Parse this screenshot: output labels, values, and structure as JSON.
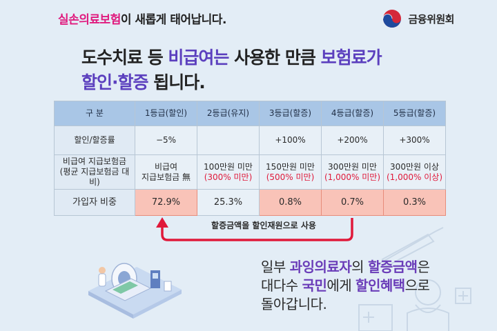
{
  "header": {
    "headline_highlight": "실손의료보험",
    "headline_rest": "이 새롭게 태어납니다.",
    "org_name": "금융위원회",
    "org_logo": "taegeuk-logo"
  },
  "subtitle": {
    "line1_pre": "도수치료 등 ",
    "line1_hl1": "비급여는",
    "line1_mid": " 사용한 만큼 ",
    "line1_hl2": "보험료가",
    "line2_hl": "할인·할증",
    "line2_rest": " 됩니다."
  },
  "table": {
    "headers": [
      "구 분",
      "1등급(할인)",
      "2등급(유지)",
      "3등급(할증)",
      "4등급(할증)",
      "5등급(할증)"
    ],
    "rate_row": {
      "label": "할인/할증률",
      "values": [
        "−5%",
        "",
        "+100%",
        "+200%",
        "+300%"
      ]
    },
    "claim_row": {
      "label_line1": "비급여 지급보험금",
      "label_line2": "(평균 지급보험금 대비)",
      "cells": [
        {
          "line1": "비급여",
          "line2": "지급보험금 無"
        },
        {
          "line1": "100만원 미만",
          "line2": "(300% 미만)"
        },
        {
          "line1": "150만원 미만",
          "line2": "(500% 미만)"
        },
        {
          "line1": "300만원 미만",
          "line2": "(1,000% 미만)"
        },
        {
          "line1": "300만원 이상",
          "line2": "(1,000% 이상)"
        }
      ]
    },
    "share_row": {
      "label": "가입자 비중",
      "values": [
        "72.9%",
        "25.3%",
        "0.8%",
        "0.7%",
        "0.3%"
      ]
    }
  },
  "arrow": {
    "label": "할증금액을 할인재원으로 사용",
    "color": "#e0193a"
  },
  "bottom": {
    "l1_pre": "일부 ",
    "l1_hl1": "과잉의료자",
    "l1_mid": "의 ",
    "l1_hl2": "할증금액",
    "l1_post": "은",
    "l2_pre": "대다수 ",
    "l2_hl1": "국민",
    "l2_mid": "에게 ",
    "l2_hl2": "할인혜택",
    "l2_post": "으로",
    "l3": "돌아갑니다."
  },
  "colors": {
    "background": "#e3edf6",
    "header_cell": "#a9c6e6",
    "highlight_cell": "#f9c3b8",
    "accent_pink": "#e0197d",
    "accent_violet": "#5b3fbe"
  }
}
